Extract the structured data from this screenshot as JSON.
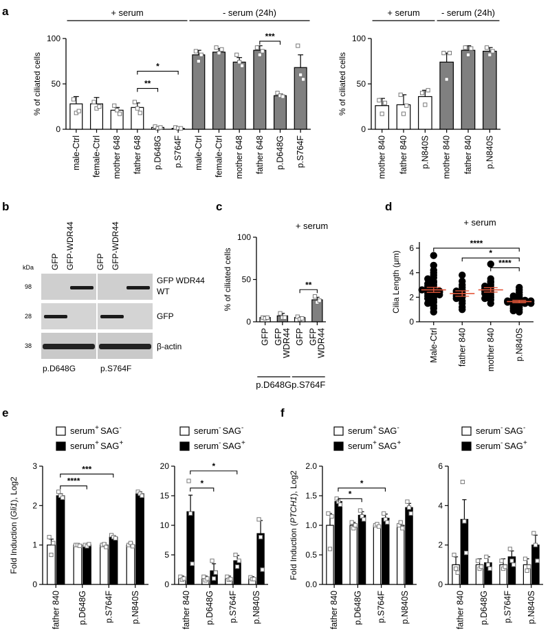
{
  "figure": {
    "panel_labels": [
      "a",
      "b",
      "c",
      "d",
      "e",
      "f"
    ],
    "blot": {
      "unit": "kDa",
      "lane_headers": [
        "GFP",
        "GFP-WDR44",
        "GFP",
        "GFP-WDR44"
      ],
      "markers": [
        "98",
        "28",
        "38"
      ],
      "band_labels": [
        "GFP WDR44",
        "WT",
        "GFP",
        "β-actin"
      ],
      "group_labels": [
        "p.D648G",
        "p.S764F"
      ]
    }
  },
  "chart_data": [
    {
      "id": "a1",
      "type": "bar",
      "ylabel": "% of ciliated cells",
      "ylim": [
        0,
        100
      ],
      "yticks": [
        0,
        50,
        100
      ],
      "categories": [
        "male-Ctrl",
        "female-Ctrl",
        "mother 648",
        "father 648",
        "p.D648G",
        "p.S764F",
        "male-Ctrl",
        "female-Ctrl",
        "mother 648",
        "father 648",
        "p.D648G",
        "p.S764F"
      ],
      "values": [
        28,
        28,
        21,
        24,
        2,
        1,
        82,
        85,
        74,
        87,
        37,
        68
      ],
      "errors": [
        8,
        7,
        3,
        5,
        1,
        1,
        5,
        4,
        5,
        5,
        2,
        14
      ],
      "points": [
        [
          33,
          18,
          20
        ],
        [
          30,
          23,
          25
        ],
        [
          26,
          21,
          17
        ],
        [
          30,
          23,
          18
        ],
        [
          3,
          1,
          2
        ],
        [
          2,
          1,
          1
        ],
        [
          86,
          75,
          82
        ],
        [
          90,
          84,
          88
        ],
        [
          82,
          74,
          70
        ],
        [
          90,
          82,
          86
        ],
        [
          40,
          37,
          36
        ],
        [
          92,
          60,
          55
        ]
      ],
      "fills": [
        "#ffffff",
        "#ffffff",
        "#ffffff",
        "#ffffff",
        "#ffffff",
        "#ffffff",
        "#808080",
        "#808080",
        "#808080",
        "#808080",
        "#808080",
        "#808080"
      ],
      "groups": [
        {
          "label": "+ serum",
          "from": 0,
          "to": 5
        },
        {
          "label": "- serum (24h)",
          "from": 6,
          "to": 11
        }
      ],
      "comparisons": [
        {
          "from": 3,
          "to": 4,
          "label": "**",
          "y": 45
        },
        {
          "from": 3,
          "to": 5,
          "label": "*",
          "y": 64
        },
        {
          "from": 9,
          "to": 10,
          "label": "***",
          "y": 97
        }
      ]
    },
    {
      "id": "a2",
      "type": "bar",
      "ylabel": "% of ciliated cells",
      "ylim": [
        0,
        100
      ],
      "yticks": [
        0,
        50,
        100
      ],
      "categories": [
        "mother 840",
        "father 840",
        "p.N840S",
        "mother 840",
        "father 840",
        "p.N840S"
      ],
      "values": [
        26,
        27,
        36,
        74,
        87,
        86
      ],
      "errors": [
        8,
        11,
        7,
        10,
        5,
        4
      ],
      "points": [
        [
          32,
          17,
          29
        ],
        [
          38,
          17,
          26
        ],
        [
          40,
          27,
          43
        ],
        [
          84,
          55,
          84
        ],
        [
          90,
          82,
          89
        ],
        [
          90,
          82,
          86
        ]
      ],
      "fills": [
        "#ffffff",
        "#ffffff",
        "#ffffff",
        "#808080",
        "#808080",
        "#808080"
      ],
      "groups": [
        {
          "label": "+ serum",
          "from": 0,
          "to": 2
        },
        {
          "label": "- serum (24h)",
          "from": 3,
          "to": 5
        }
      ],
      "comparisons": []
    },
    {
      "id": "c",
      "type": "bar",
      "title": "+ serum",
      "ylabel": "% of ciliated cells",
      "ylim": [
        0,
        100
      ],
      "yticks": [
        0,
        50,
        100
      ],
      "categories": [
        "GFP",
        "GFP\nWDR44",
        "GFP",
        "GFP\nWDR44"
      ],
      "values": [
        5,
        7,
        5,
        26
      ],
      "errors": [
        1,
        3,
        1,
        3
      ],
      "points": [
        [
          5,
          4,
          5
        ],
        [
          10,
          5,
          5
        ],
        [
          6,
          3,
          4
        ],
        [
          30,
          23,
          25
        ]
      ],
      "fills": [
        "#ffffff",
        "#808080",
        "#ffffff",
        "#808080"
      ],
      "groups": [
        {
          "label": "p.D648G",
          "from": 0,
          "to": 1
        },
        {
          "label": "p.S764F",
          "from": 2,
          "to": 3
        }
      ],
      "comparisons": [
        {
          "from": 2,
          "to": 3,
          "label": "**",
          "y": 38
        }
      ]
    },
    {
      "id": "d",
      "type": "scatter",
      "title": "+ serum",
      "ylabel": "Cilia Length (μm)",
      "ylim": [
        0,
        6.5
      ],
      "yticks": [
        0,
        2,
        4,
        6
      ],
      "categories": [
        "Male-Ctrl",
        "father 840",
        "mother 840",
        "p.N840S"
      ],
      "means": [
        2.6,
        2.3,
        2.6,
        1.65
      ],
      "errors": [
        0.2,
        0.22,
        0.18,
        0.1
      ],
      "points": [
        [
          5.4,
          4.6,
          4.2,
          4.0,
          3.8,
          3.6,
          3.5,
          3.3,
          3.2,
          3.1,
          3.0,
          2.9,
          2.8,
          2.7,
          2.6,
          2.5,
          2.5,
          2.4,
          2.3,
          2.2,
          2.1,
          2.0,
          1.9,
          1.8,
          1.6,
          1.5,
          1.3,
          1.1,
          0.8,
          2.6,
          2.4,
          2.2
        ],
        [
          3.8,
          3.3,
          3.0,
          2.8,
          2.6,
          2.5,
          2.4,
          2.3,
          2.2,
          2.1,
          2.0,
          1.9,
          1.7,
          1.5,
          1.2,
          1.0
        ],
        [
          4.7,
          3.5,
          3.3,
          3.2,
          3.0,
          2.9,
          2.8,
          2.7,
          2.6,
          2.5,
          2.4,
          2.3,
          2.2,
          2.0,
          1.9,
          1.8,
          1.5
        ],
        [
          2.8,
          2.6,
          2.4,
          2.2,
          2.1,
          2.0,
          1.9,
          1.85,
          1.8,
          1.75,
          1.7,
          1.65,
          1.6,
          1.5,
          1.4,
          1.3,
          1.2,
          1.1,
          1.0,
          0.9,
          0.8,
          1.7,
          1.6,
          1.5
        ]
      ],
      "comparisons": [
        {
          "from": 1,
          "to": 3,
          "label": "*",
          "y": 5.2
        },
        {
          "from": 2,
          "to": 3,
          "label": "****",
          "y": 4.4
        },
        {
          "from": 0,
          "to": 3,
          "label": "****",
          "y": 6.0
        }
      ]
    },
    {
      "id": "e1",
      "type": "bar",
      "ylabel": "Fold Induction (Gli1), Log2",
      "ylabel_parts": [
        "Fold Induction (",
        "Gli1",
        "), Log2"
      ],
      "ylim": [
        0,
        3
      ],
      "yticks": [
        0,
        1,
        2,
        3
      ],
      "categories": [
        "father 840",
        "p.D648G",
        "p.S764F",
        "p.N840S"
      ],
      "series": [
        {
          "name": "serum+ SAG-",
          "values": [
            1.0,
            1.0,
            1.0,
            1.0
          ],
          "errors": [
            0.15,
            0.02,
            0.05,
            0.05
          ],
          "points": [
            [
              1.2,
              0.75,
              1.05
            ],
            [
              1.0,
              1.0,
              0.98
            ],
            [
              1.0,
              1.02,
              0.95
            ],
            [
              1.0,
              1.05,
              0.97
            ]
          ]
        },
        {
          "name": "serum+ SAG+",
          "values": [
            2.25,
            1.0,
            1.2,
            2.3
          ],
          "errors": [
            0.05,
            0.03,
            0.04,
            0.05
          ],
          "points": [
            [
              2.35,
              2.25,
              2.2
            ],
            [
              1.0,
              0.97,
              1.02
            ],
            [
              1.25,
              1.2,
              1.17
            ],
            [
              2.35,
              2.3,
              2.25
            ]
          ]
        }
      ],
      "legend": [
        {
          "text": "serum",
          "sup1": "+",
          "text2": "SAG",
          "sup2": "-"
        },
        {
          "text": "serum",
          "sup1": "+",
          "text2": "SAG",
          "sup2": "+"
        }
      ],
      "comparisons": [
        {
          "from_x": 0.17,
          "to_x": 1.17,
          "label": "****",
          "y": 2.5
        },
        {
          "from_x": 0.17,
          "to_x": 2.17,
          "label": "***",
          "y": 2.8
        }
      ]
    },
    {
      "id": "e2",
      "type": "bar",
      "ylim": [
        0,
        20
      ],
      "yticks": [
        0,
        5,
        10,
        15,
        20
      ],
      "categories": [
        "father 840",
        "p.D648G",
        "p.S764F",
        "p.N840S"
      ],
      "series": [
        {
          "name": "serum- SAG-",
          "values": [
            1.0,
            1.0,
            1.0,
            1.0
          ],
          "errors": [
            0.4,
            0.4,
            0.4,
            0.3
          ],
          "points": [
            [
              1.3,
              0.8,
              1.0
            ],
            [
              1.3,
              0.7,
              1.0
            ],
            [
              1.3,
              0.8,
              0.9
            ],
            [
              1.2,
              0.9,
              0.9
            ]
          ]
        },
        {
          "name": "serum- SAG+",
          "values": [
            12.3,
            2.3,
            4.0,
            8.6
          ],
          "errors": [
            2.8,
            1.2,
            0.9,
            2.2
          ],
          "points": [
            [
              17.5,
              12.0,
              3.5
            ],
            [
              4.0,
              1.0,
              2.0
            ],
            [
              5.0,
              3.0,
              4.0
            ],
            [
              11.0,
              8.0,
              2.5
            ]
          ]
        }
      ],
      "legend": [
        {
          "text": "serum",
          "sup1": "-",
          "text2": "SAG",
          "sup2": "-"
        },
        {
          "text": "serum",
          "sup1": "-",
          "text2": "SAG",
          "sup2": "+"
        }
      ],
      "comparisons": [
        {
          "from_x": 0.17,
          "to_x": 1.17,
          "label": "*",
          "y": 16.3
        },
        {
          "from_x": 0.17,
          "to_x": 2.17,
          "label": "*",
          "y": 19.2
        }
      ]
    },
    {
      "id": "f1",
      "type": "bar",
      "ylabel": "Fold Induction (PTCH1), Log2",
      "ylabel_parts": [
        "Fold Induction (",
        "PTCH1",
        "), Log2"
      ],
      "ylim": [
        0,
        2.0
      ],
      "yticks": [
        0,
        0.5,
        1.0,
        1.5,
        2.0
      ],
      "categories": [
        "father 840",
        "p.D648G",
        "p.S764F",
        "p.N840S"
      ],
      "series": [
        {
          "name": "serum+ SAG-",
          "values": [
            1.0,
            1.0,
            1.0,
            1.0
          ],
          "errors": [
            0.2,
            0.05,
            0.03,
            0.05
          ],
          "points": [
            [
              1.2,
              0.6,
              1.15
            ],
            [
              1.05,
              0.95,
              1.0
            ],
            [
              1.0,
              1.02,
              0.98
            ],
            [
              1.0,
              1.05,
              0.95
            ]
          ]
        },
        {
          "name": "serum+ SAG+",
          "values": [
            1.4,
            1.17,
            1.12,
            1.3
          ],
          "errors": [
            0.05,
            0.06,
            0.07,
            0.07
          ],
          "points": [
            [
              1.45,
              1.4,
              1.35
            ],
            [
              1.25,
              1.15,
              1.1
            ],
            [
              1.2,
              1.1,
              1.05
            ],
            [
              1.4,
              1.3,
              1.2
            ]
          ]
        }
      ],
      "legend": [
        {
          "text": "serum",
          "sup1": "+",
          "text2": "SAG",
          "sup2": "-"
        },
        {
          "text": "serum",
          "sup1": "+",
          "text2": "SAG",
          "sup2": "+"
        }
      ],
      "comparisons": [
        {
          "from_x": 0.17,
          "to_x": 1.17,
          "label": "*",
          "y": 1.45
        },
        {
          "from_x": 0.17,
          "to_x": 2.17,
          "label": "*",
          "y": 1.63
        }
      ]
    },
    {
      "id": "f2",
      "type": "bar",
      "ylim": [
        0,
        6
      ],
      "yticks": [
        0,
        2,
        4,
        6
      ],
      "categories": [
        "father 840",
        "p.D648G",
        "p.S764F",
        "p.N840S"
      ],
      "series": [
        {
          "name": "serum- SAG-",
          "values": [
            1.0,
            1.0,
            1.0,
            1.0
          ],
          "errors": [
            0.4,
            0.3,
            0.3,
            0.3
          ],
          "points": [
            [
              1.5,
              0.8,
              0.6
            ],
            [
              1.2,
              0.8,
              0.9
            ],
            [
              1.2,
              0.8,
              0.9
            ],
            [
              1.3,
              0.7,
              0.9
            ]
          ]
        },
        {
          "name": "serum- SAG+",
          "values": [
            3.3,
            1.1,
            1.4,
            2.0
          ],
          "errors": [
            1.0,
            0.3,
            0.3,
            0.5
          ],
          "points": [
            [
              5.2,
              3.2,
              1.6
            ],
            [
              1.4,
              1.0,
              0.8
            ],
            [
              1.8,
              1.2,
              1.0
            ],
            [
              2.6,
              2.0,
              1.2
            ]
          ]
        }
      ],
      "legend": [
        {
          "text": "serum",
          "sup1": "-",
          "text2": "SAG",
          "sup2": "-"
        },
        {
          "text": "serum",
          "sup1": "-",
          "text2": "SAG",
          "sup2": "+"
        }
      ],
      "comparisons": []
    }
  ]
}
